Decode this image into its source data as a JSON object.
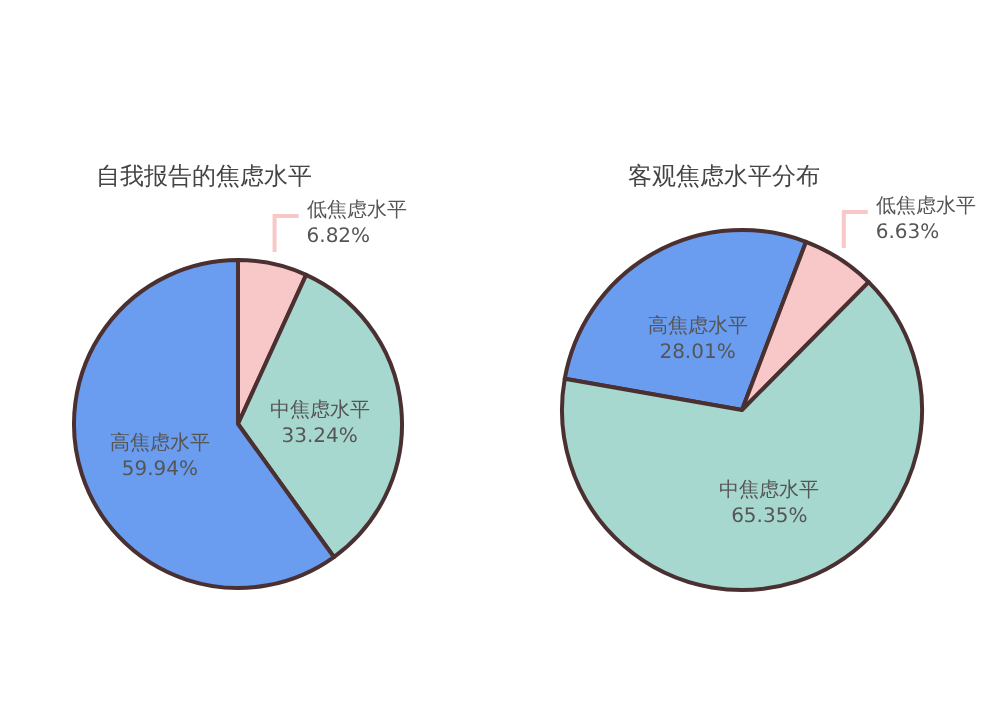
{
  "chart_data": [
    {
      "type": "pie",
      "title": "自我报告的焦虑水平",
      "categories": [
        "低焦虑水平",
        "中焦虑水平",
        "高焦虑水平"
      ],
      "values": [
        6.82,
        33.24,
        59.94
      ],
      "value_labels": [
        "6.82%",
        "33.24%",
        "59.94%"
      ],
      "colors": [
        "#f8c8c8",
        "#a6d8d0",
        "#6a9cf0"
      ]
    },
    {
      "type": "pie",
      "title": "客观焦虑水平分布",
      "categories": [
        "高焦虑水平",
        "低焦虑水平",
        "中焦虑水平"
      ],
      "values": [
        28.01,
        6.63,
        65.35
      ],
      "value_labels": [
        "28.01%",
        "6.63%",
        "65.35%"
      ],
      "colors": [
        "#6a9cf0",
        "#f8c8c8",
        "#a6d8d0"
      ]
    }
  ]
}
